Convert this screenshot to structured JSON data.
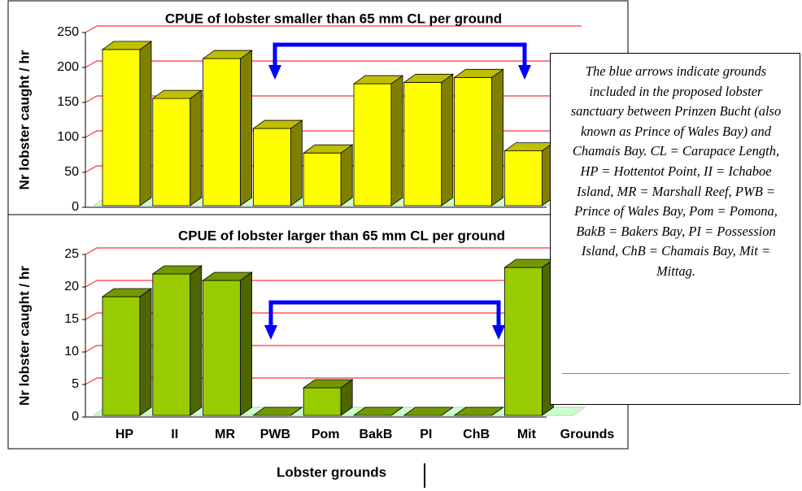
{
  "chart_data": [
    {
      "type": "bar3d",
      "title": "CPUE of lobster smaller than 65 mm CL per ground",
      "ylabel": "Nr lobster caught / hr",
      "values": [
        235,
        165,
        222,
        122,
        87,
        186,
        188,
        195,
        90
      ],
      "color": "#ffff00",
      "ylim": [
        0,
        250
      ],
      "yticks": [
        0,
        50,
        100,
        150,
        200,
        250
      ],
      "grid": true
    },
    {
      "type": "bar3d",
      "title": "CPUE of lobster larger than 65 mm CL per ground",
      "ylabel": "Nr lobster caught / hr",
      "xlabel": "Grounds",
      "categories": [
        "HP",
        "II",
        "MR",
        "PWB",
        "Pom",
        "BakB",
        "PI",
        "ChB",
        "Mit"
      ],
      "values": [
        19.5,
        23,
        22,
        0.5,
        5.5,
        0.3,
        0.5,
        0,
        24
      ],
      "color": "#99cc00",
      "ylim": [
        0,
        25
      ],
      "yticks": [
        0,
        5,
        10,
        15,
        20,
        25
      ],
      "grid": true
    }
  ],
  "xlabel": "Lobster grounds",
  "note": "The blue arrows indicate grounds included in the proposed lobster sanctuary between Prinzen Bucht (also known as Prince of Wales Bay) and Chamais Bay. CL = Carapace Length, HP = Hottentot Point, II = Ichaboe Island, MR = Marshall Reef, PWB = Prince of Wales Bay, Pom = Pomona, BakB = Bakers Bay, PI = Possession Island, ChB = Chamais Bay, Mit = Mittag."
}
